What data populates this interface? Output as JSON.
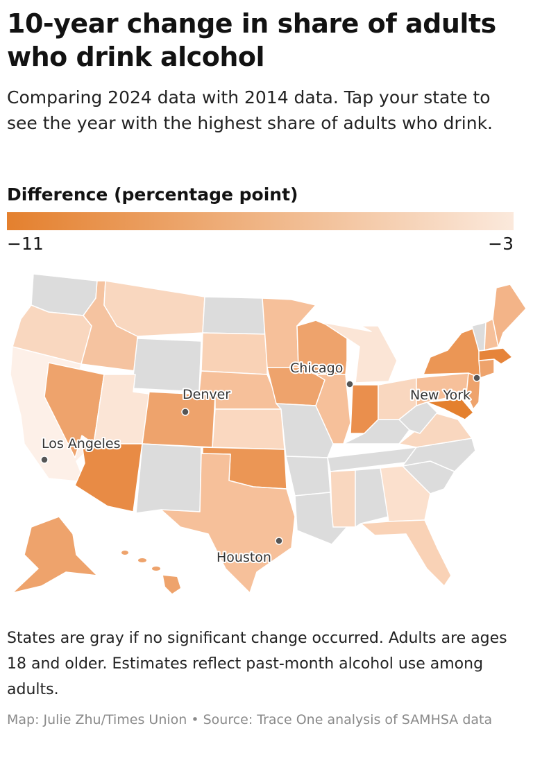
{
  "title": "10-year change in share of adults who drink alcohol",
  "subtitle": "Comparing 2024 data with 2014 data. Tap your state to see the year with the highest share of adults who drink.",
  "legend": {
    "title": "Difference (percentage point)",
    "min_label": "−11",
    "max_label": "−3",
    "min_value": -11,
    "max_value": -3,
    "color_min": "#e4802e",
    "color_max": "#fbe9dc"
  },
  "map": {
    "no_change_color": "#dcdcdc",
    "cities": [
      {
        "name": "Chicago"
      },
      {
        "name": "Denver"
      },
      {
        "name": "New York"
      },
      {
        "name": "Los Angeles"
      },
      {
        "name": "Houston"
      }
    ]
  },
  "note": "States are gray if no significant change occurred. Adults are ages 18 and older. Estimates reflect past-month alcohol use among adults.",
  "credit": "Map: Julie Zhu/Times Union • Source: Trace One analysis of SAMHSA data"
}
